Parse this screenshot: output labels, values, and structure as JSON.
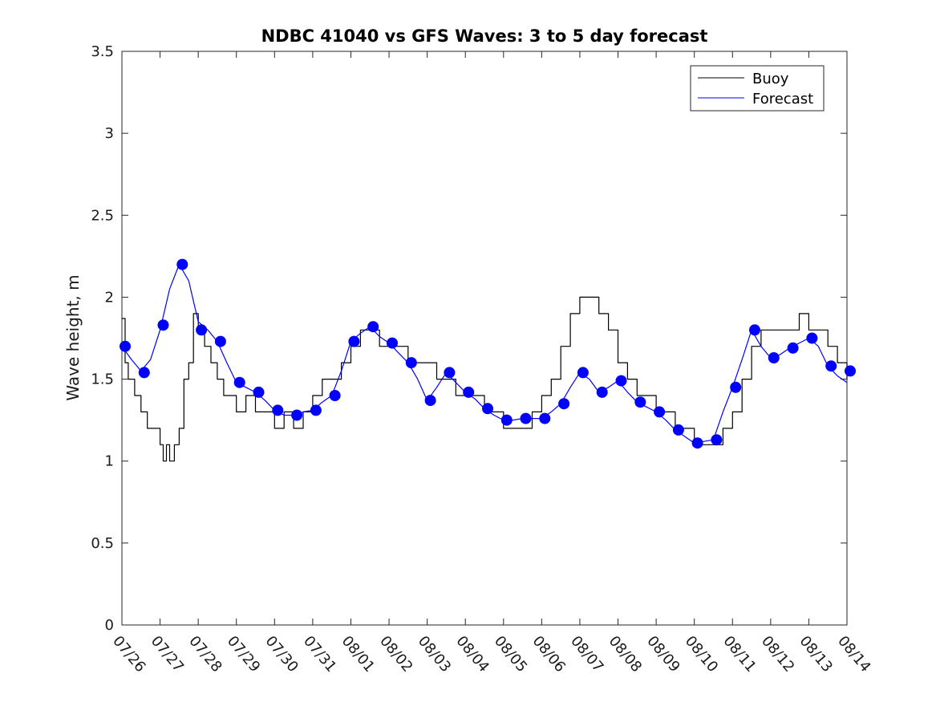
{
  "chart_data": {
    "type": "line",
    "title": "NDBC 41040 vs GFS Waves: 3 to 5 day forecast",
    "xlabel": "",
    "ylabel": "Wave height, m",
    "xlim": [
      "07/26",
      "08/14"
    ],
    "ylim": [
      0,
      3.5
    ],
    "yticks": [
      0,
      0.5,
      1,
      1.5,
      2,
      2.5,
      3,
      3.5
    ],
    "ytick_labels": [
      "0",
      "0.5",
      "1",
      "1.5",
      "2",
      "2.5",
      "3",
      "3.5"
    ],
    "xtick_labels": [
      "07/26",
      "07/27",
      "07/28",
      "07/29",
      "07/30",
      "07/31",
      "08/01",
      "08/02",
      "08/03",
      "08/04",
      "08/05",
      "08/06",
      "08/07",
      "08/08",
      "08/09",
      "08/10",
      "08/11",
      "08/12",
      "08/13",
      "08/14"
    ],
    "grid": false,
    "legend_position": "top-right",
    "legend": [
      "Buoy",
      "Forecast"
    ],
    "colors": {
      "buoy": "#000000",
      "forecast": "#0000ff",
      "markers": "#0000ff"
    },
    "series": [
      {
        "name": "Buoy",
        "style": "step",
        "x": [
          "07/26 00:00",
          "07/26 02:00",
          "07/26 04:00",
          "07/26 08:00",
          "07/26 12:00",
          "07/26 16:00",
          "07/26 20:00",
          "07/27 00:00",
          "07/27 02:00",
          "07/27 04:00",
          "07/27 06:00",
          "07/27 09:00",
          "07/27 12:00",
          "07/27 15:00",
          "07/27 18:00",
          "07/27 21:00",
          "07/28 00:00",
          "07/28 04:00",
          "07/28 08:00",
          "07/28 12:00",
          "07/28 16:00",
          "07/28 20:00",
          "07/29 00:00",
          "07/29 06:00",
          "07/29 12:00",
          "07/29 18:00",
          "07/30 00:00",
          "07/30 06:00",
          "07/30 12:00",
          "07/30 18:00",
          "07/31 00:00",
          "07/31 06:00",
          "07/31 12:00",
          "07/31 18:00",
          "08/01 00:00",
          "08/01 06:00",
          "08/01 12:00",
          "08/01 18:00",
          "08/02 00:00",
          "08/02 06:00",
          "08/02 12:00",
          "08/02 18:00",
          "08/03 00:00",
          "08/03 06:00",
          "08/03 12:00",
          "08/03 18:00",
          "08/04 00:00",
          "08/04 06:00",
          "08/04 12:00",
          "08/04 18:00",
          "08/05 00:00",
          "08/05 06:00",
          "08/05 12:00",
          "08/05 18:00",
          "08/06 00:00",
          "08/06 06:00",
          "08/06 12:00",
          "08/06 18:00",
          "08/07 00:00",
          "08/07 06:00",
          "08/07 12:00",
          "08/07 18:00",
          "08/08 00:00",
          "08/08 06:00",
          "08/08 12:00",
          "08/08 18:00",
          "08/09 00:00",
          "08/09 06:00",
          "08/09 12:00",
          "08/09 18:00",
          "08/10 00:00",
          "08/10 06:00",
          "08/10 12:00",
          "08/10 18:00",
          "08/11 00:00",
          "08/11 06:00",
          "08/11 12:00",
          "08/11 18:00",
          "08/12 00:00",
          "08/12 06:00",
          "08/12 12:00",
          "08/12 18:00",
          "08/13 00:00",
          "08/13 06:00",
          "08/13 12:00",
          "08/13 18:00",
          "08/14 00:00"
        ],
        "values": [
          1.87,
          1.6,
          1.5,
          1.4,
          1.3,
          1.2,
          1.2,
          1.1,
          1.0,
          1.1,
          1.0,
          1.1,
          1.2,
          1.5,
          1.6,
          1.9,
          1.8,
          1.7,
          1.6,
          1.5,
          1.4,
          1.4,
          1.3,
          1.4,
          1.3,
          1.3,
          1.2,
          1.3,
          1.2,
          1.3,
          1.4,
          1.5,
          1.5,
          1.6,
          1.7,
          1.8,
          1.8,
          1.7,
          1.7,
          1.7,
          1.6,
          1.6,
          1.6,
          1.5,
          1.5,
          1.4,
          1.4,
          1.4,
          1.3,
          1.3,
          1.2,
          1.2,
          1.2,
          1.3,
          1.4,
          1.5,
          1.7,
          1.9,
          2.0,
          2.0,
          1.9,
          1.8,
          1.6,
          1.5,
          1.4,
          1.4,
          1.3,
          1.3,
          1.2,
          1.2,
          1.1,
          1.1,
          1.1,
          1.2,
          1.3,
          1.5,
          1.7,
          1.8,
          1.8,
          1.8,
          1.8,
          1.9,
          1.8,
          1.8,
          1.7,
          1.6,
          1.5
        ]
      },
      {
        "name": "Forecast",
        "style": "lines",
        "x": [
          "07/26 00:00",
          "07/26 06:00",
          "07/26 12:00",
          "07/26 18:00",
          "07/27 00:00",
          "07/27 06:00",
          "07/27 12:00",
          "07/27 18:00",
          "07/28 00:00",
          "07/28 06:00",
          "07/28 12:00",
          "07/28 18:00",
          "07/29 00:00",
          "07/29 06:00",
          "07/29 12:00",
          "07/29 18:00",
          "07/30 00:00",
          "07/30 06:00",
          "07/30 12:00",
          "07/30 18:00",
          "07/31 00:00",
          "07/31 06:00",
          "07/31 12:00",
          "07/31 18:00",
          "08/01 00:00",
          "08/01 06:00",
          "08/01 12:00",
          "08/01 18:00",
          "08/02 00:00",
          "08/02 06:00",
          "08/02 12:00",
          "08/02 18:00",
          "08/03 00:00",
          "08/03 06:00",
          "08/03 12:00",
          "08/03 18:00",
          "08/04 00:00",
          "08/04 06:00",
          "08/04 12:00",
          "08/04 18:00",
          "08/05 00:00",
          "08/05 06:00",
          "08/05 12:00",
          "08/05 18:00",
          "08/06 00:00",
          "08/06 06:00",
          "08/06 12:00",
          "08/06 18:00",
          "08/07 00:00",
          "08/07 06:00",
          "08/07 12:00",
          "08/07 18:00",
          "08/08 00:00",
          "08/08 06:00",
          "08/08 12:00",
          "08/08 18:00",
          "08/09 00:00",
          "08/09 06:00",
          "08/09 12:00",
          "08/09 18:00",
          "08/10 00:00",
          "08/10 06:00",
          "08/10 12:00",
          "08/10 18:00",
          "08/11 00:00",
          "08/11 06:00",
          "08/11 12:00",
          "08/11 18:00",
          "08/12 00:00",
          "08/12 06:00",
          "08/12 12:00",
          "08/12 18:00",
          "08/13 00:00",
          "08/13 06:00",
          "08/13 12:00",
          "08/13 18:00",
          "08/14 00:00"
        ],
        "values": [
          1.7,
          1.62,
          1.55,
          1.62,
          1.8,
          2.05,
          2.2,
          2.1,
          1.85,
          1.8,
          1.73,
          1.6,
          1.48,
          1.45,
          1.42,
          1.37,
          1.31,
          1.28,
          1.28,
          1.3,
          1.31,
          1.36,
          1.4,
          1.55,
          1.73,
          1.78,
          1.82,
          1.76,
          1.72,
          1.66,
          1.6,
          1.5,
          1.37,
          1.45,
          1.54,
          1.48,
          1.42,
          1.38,
          1.32,
          1.28,
          1.25,
          1.25,
          1.26,
          1.26,
          1.26,
          1.3,
          1.35,
          1.45,
          1.54,
          1.5,
          1.42,
          1.45,
          1.49,
          1.42,
          1.36,
          1.33,
          1.3,
          1.25,
          1.19,
          1.15,
          1.11,
          1.12,
          1.13,
          1.3,
          1.45,
          1.62,
          1.8,
          1.7,
          1.63,
          1.65,
          1.69,
          1.72,
          1.75,
          1.7,
          1.58,
          1.52,
          1.48
        ]
      }
    ],
    "markers": {
      "name": "Forecast",
      "x": [
        "07/26 02:00",
        "07/26 14:00",
        "07/27 02:00",
        "07/27 14:00",
        "07/28 02:00",
        "07/28 14:00",
        "07/29 02:00",
        "07/29 14:00",
        "07/30 02:00",
        "07/30 14:00",
        "07/31 02:00",
        "07/31 14:00",
        "08/01 02:00",
        "08/01 14:00",
        "08/02 02:00",
        "08/02 14:00",
        "08/03 02:00",
        "08/03 14:00",
        "08/04 02:00",
        "08/04 14:00",
        "08/05 02:00",
        "08/05 14:00",
        "08/06 02:00",
        "08/06 14:00",
        "08/07 02:00",
        "08/07 14:00",
        "08/08 02:00",
        "08/08 14:00",
        "08/09 02:00",
        "08/09 14:00",
        "08/10 02:00",
        "08/10 14:00",
        "08/11 02:00",
        "08/11 14:00",
        "08/12 02:00",
        "08/12 14:00",
        "08/13 02:00",
        "08/13 14:00",
        "08/14 02:00"
      ],
      "values": [
        1.7,
        1.54,
        1.83,
        2.2,
        1.8,
        1.73,
        1.48,
        1.42,
        1.31,
        1.28,
        1.31,
        1.4,
        1.73,
        1.82,
        1.72,
        1.6,
        1.37,
        1.54,
        1.42,
        1.32,
        1.25,
        1.26,
        1.26,
        1.35,
        1.54,
        1.42,
        1.49,
        1.36,
        1.3,
        1.19,
        1.11,
        1.13,
        1.45,
        1.8,
        1.63,
        1.69,
        1.75,
        1.58,
        1.55
      ]
    }
  }
}
